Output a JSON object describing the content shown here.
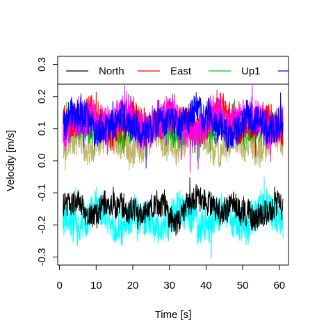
{
  "chart_data": {
    "type": "line",
    "title": "",
    "xlabel": "Time [s]",
    "ylabel": "Velocity [m/s]",
    "xlim": [
      -0.5,
      62.5
    ],
    "ylim": [
      -0.325,
      0.325
    ],
    "xticks": [
      0,
      10,
      20,
      30,
      40,
      50,
      60
    ],
    "xtick_labels": [
      "0",
      "10",
      "20",
      "30",
      "40",
      "50",
      "60"
    ],
    "yticks": [
      -0.3,
      -0.2,
      -0.1,
      0.0,
      0.1,
      0.2,
      0.3
    ],
    "ytick_labels": [
      "-0.3",
      "-0.2",
      "-0.1",
      "0.0",
      "0.1",
      "0.2",
      "0.3"
    ],
    "ytick_rotation": "vertical",
    "grid": false,
    "legend": {
      "placement": "top, horizontal, clipped at right edge of plot box",
      "entries": [
        {
          "name": "North",
          "color": "#000000"
        },
        {
          "name": "East",
          "color": "#ff0000"
        },
        {
          "name": "Up1",
          "color": "#00cc00"
        },
        {
          "name": "",
          "color": "#0000ff"
        }
      ]
    },
    "x_range": [
      1.0,
      61.0
    ],
    "series": [
      {
        "name": "North",
        "color": "#000000",
        "mean": -0.145,
        "amplitude": 0.04,
        "min": -0.27,
        "max": -0.04,
        "z": 6
      },
      {
        "name": "East",
        "color": "#ff0000",
        "mean": 0.125,
        "amplitude": 0.05,
        "min": -0.02,
        "max": 0.235,
        "z": 3
      },
      {
        "name": "Up1",
        "color": "#00cc00",
        "mean": 0.1,
        "amplitude": 0.04,
        "min": 0.0,
        "max": 0.2,
        "z": 1
      },
      {
        "name": "",
        "color": "#0000ff",
        "mean": 0.11,
        "amplitude": 0.05,
        "min": -0.03,
        "max": 0.235,
        "z": 5
      },
      {
        "name": "",
        "color": "#00ffff",
        "mean": -0.18,
        "amplitude": 0.055,
        "min": -0.33,
        "max": 0.0,
        "z": 2
      },
      {
        "name": "",
        "color": "#ff00ff",
        "mean": 0.12,
        "amplitude": 0.06,
        "min": -0.23,
        "max": 0.235,
        "z": 4
      },
      {
        "name": "",
        "color": "#bdb76b",
        "mean": 0.05,
        "amplitude": 0.05,
        "min": -0.05,
        "max": 0.235,
        "z": 0
      }
    ]
  }
}
